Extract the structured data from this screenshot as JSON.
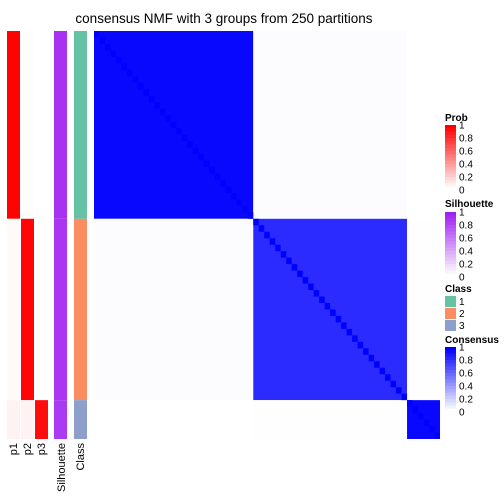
{
  "chart_data": {
    "type": "heatmap",
    "title": "consensus NMF with 3 groups from 250 partitions",
    "annotation_tracks": [
      "p1",
      "p2",
      "p3",
      "Silhouette",
      "Class"
    ],
    "groups": [
      {
        "class": 1,
        "n_samples": 29,
        "p1": 0.99,
        "p2": 0.01,
        "p3": 0.0,
        "silhouette": 0.92
      },
      {
        "class": 2,
        "n_samples": 28,
        "p1": 0.02,
        "p2": 0.98,
        "p3": 0.0,
        "silhouette": 0.9
      },
      {
        "class": 3,
        "n_samples": 6,
        "p1": 0.05,
        "p2": 0.05,
        "p3": 0.95,
        "silhouette": 0.88
      }
    ],
    "within_group_consensus": [
      0.97,
      0.83,
      0.97
    ],
    "between_group_consensus": [
      [
        1.0,
        0.05,
        0.0
      ],
      [
        0.05,
        1.0,
        0.02
      ],
      [
        0.0,
        0.02,
        1.0
      ]
    ],
    "legends": [
      {
        "title": "Prob",
        "ticks": [
          "1",
          "0.8",
          "0.6",
          "0.4",
          "0.2",
          "0"
        ],
        "low_color": "#ffffff",
        "high_color": "#ff0000"
      },
      {
        "title": "Silhouette",
        "ticks": [
          "1",
          "0.8",
          "0.6",
          "0.4",
          "0.2",
          "0"
        ],
        "low_color": "#ffffff",
        "high_color": "#a020f0"
      },
      {
        "title": "Class",
        "entries": [
          {
            "label": "1",
            "color": "#66c2a5"
          },
          {
            "label": "2",
            "color": "#fc8d62"
          },
          {
            "label": "3",
            "color": "#8da0cb"
          }
        ]
      },
      {
        "title": "Consensus",
        "ticks": [
          "1",
          "0.8",
          "0.6",
          "0.4",
          "0.2",
          "0"
        ],
        "low_color": "#ffffff",
        "high_color": "#0000ff"
      }
    ]
  }
}
